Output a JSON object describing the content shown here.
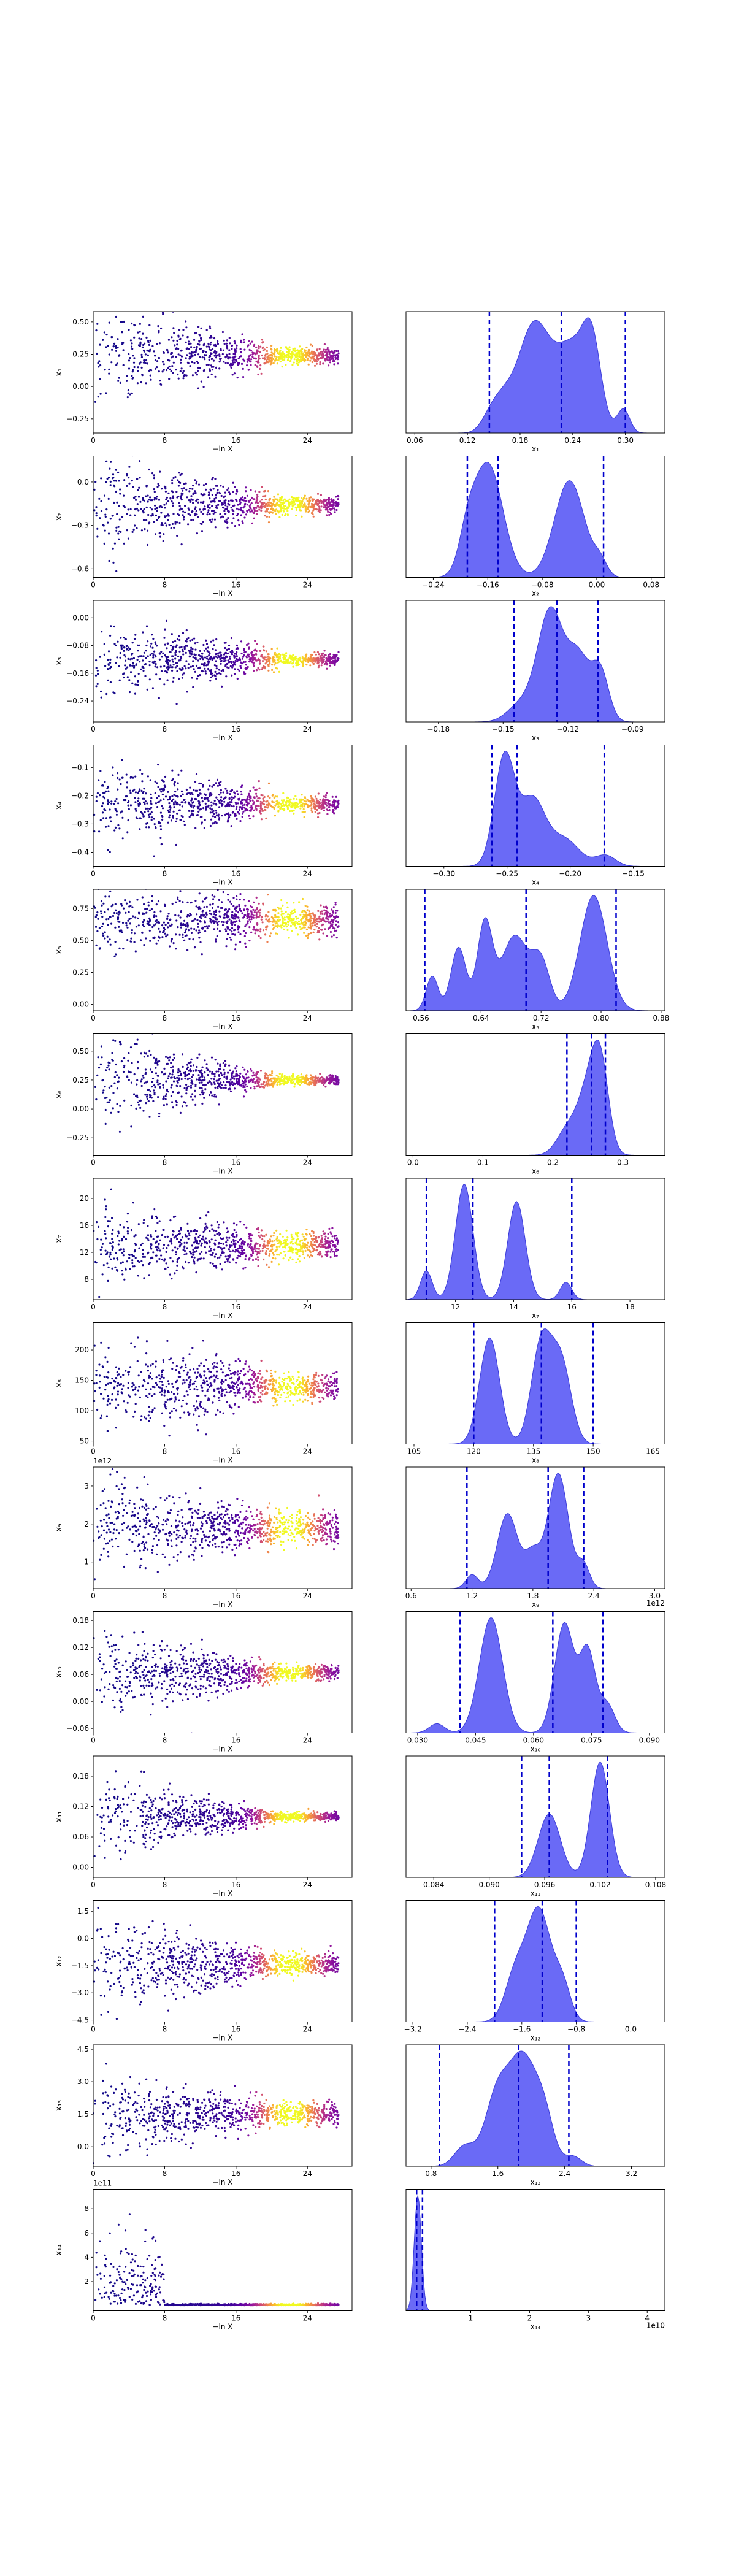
{
  "figure": {
    "x_axis_label": "−ln X",
    "colormap": [
      "#0d0887",
      "#5b02a3",
      "#9a179b",
      "#cb4678",
      "#eb7852",
      "#fbb32f",
      "#f0f921"
    ],
    "mean_line_color": "#0000cc",
    "fill_color": "#5a5af5"
  },
  "chart_data": [
    {
      "type": "scatter+kde",
      "param": "x₁",
      "trace": {
        "xlim": [
          0,
          29
        ],
        "xticks": [
          0,
          8,
          16,
          24
        ],
        "ylim": [
          -0.36,
          0.58
        ],
        "yticks": [
          -0.25,
          0,
          0.25,
          0.5
        ],
        "ytick_labels": [
          "−0.25",
          "0.00",
          "0.25",
          "0.50"
        ],
        "center": 0.24,
        "spread_early": 0.2,
        "spread_late": 0.03
      },
      "posterior": {
        "xlim": [
          0.05,
          0.345
        ],
        "xticks": [
          0.06,
          0.12,
          0.18,
          0.24,
          0.3
        ],
        "xtick_labels": [
          "0.06",
          "0.12",
          "0.18",
          "0.24",
          "0.30"
        ],
        "peaks": [
          [
            0.145,
            0.12,
            0.01
          ],
          [
            0.16,
            0.25,
            0.012
          ],
          [
            0.195,
            1.0,
            0.018
          ],
          [
            0.24,
            0.82,
            0.02
          ],
          [
            0.262,
            0.6,
            0.01
          ],
          [
            0.298,
            0.22,
            0.007
          ]
        ],
        "mean_lines": [
          0.145,
          0.227,
          0.3
        ],
        "label": "x₁"
      }
    },
    {
      "type": "scatter+kde",
      "param": "x₂",
      "trace": {
        "xlim": [
          0,
          29
        ],
        "xticks": [
          0,
          8,
          16,
          24
        ],
        "ylim": [
          -0.66,
          0.18
        ],
        "yticks": [
          -0.6,
          -0.3,
          0
        ],
        "ytick_labels": [
          "−0.6",
          "−0.3",
          "0.0"
        ],
        "center": -0.16,
        "spread_early": 0.18,
        "spread_late": 0.03
      },
      "posterior": {
        "xlim": [
          -0.28,
          0.1
        ],
        "xticks": [
          -0.24,
          -0.16,
          -0.08,
          0,
          0.08
        ],
        "xtick_labels": [
          "−0.24",
          "−0.16",
          "−0.08",
          "0.00",
          "0.08"
        ],
        "peaks": [
          [
            -0.19,
            0.25,
            0.012
          ],
          [
            -0.16,
            1.0,
            0.022
          ],
          [
            -0.04,
            0.85,
            0.022
          ],
          [
            0.005,
            0.12,
            0.01
          ]
        ],
        "mean_lines": [
          -0.19,
          -0.145,
          0.01
        ],
        "label": "x₂"
      }
    },
    {
      "type": "scatter+kde",
      "param": "x₃",
      "trace": {
        "xlim": [
          0,
          29
        ],
        "xticks": [
          0,
          8,
          16,
          24
        ],
        "ylim": [
          -0.3,
          0.05
        ],
        "yticks": [
          -0.24,
          -0.16,
          -0.08,
          0
        ],
        "ytick_labels": [
          "−0.24",
          "−0.16",
          "−0.08",
          "0.00"
        ],
        "center": -0.12,
        "spread_early": 0.06,
        "spread_late": 0.01
      },
      "posterior": {
        "xlim": [
          -0.195,
          -0.075
        ],
        "xticks": [
          -0.18,
          -0.15,
          -0.12,
          -0.09
        ],
        "xtick_labels": [
          "−0.18",
          "−0.15",
          "−0.12",
          "−0.09"
        ],
        "peaks": [
          [
            -0.142,
            0.15,
            0.006
          ],
          [
            -0.128,
            1.0,
            0.006
          ],
          [
            -0.115,
            0.55,
            0.005
          ],
          [
            -0.105,
            0.45,
            0.004
          ]
        ],
        "mean_lines": [
          -0.145,
          -0.125,
          -0.106
        ],
        "label": "x₃"
      }
    },
    {
      "type": "scatter+kde",
      "param": "x₄",
      "trace": {
        "xlim": [
          0,
          29
        ],
        "xticks": [
          0,
          8,
          16,
          24
        ],
        "ylim": [
          -0.45,
          -0.02
        ],
        "yticks": [
          -0.4,
          -0.3,
          -0.2,
          -0.1
        ],
        "ytick_labels": [
          "−0.4",
          "−0.3",
          "−0.2",
          "−0.1"
        ],
        "center": -0.23,
        "spread_early": 0.08,
        "spread_late": 0.015
      },
      "posterior": {
        "xlim": [
          -0.33,
          -0.125
        ],
        "xticks": [
          -0.3,
          -0.25,
          -0.2,
          -0.15
        ],
        "xtick_labels": [
          "−0.30",
          "−0.25",
          "−0.20",
          "−0.15"
        ],
        "peaks": [
          [
            -0.252,
            1.0,
            0.008
          ],
          [
            -0.23,
            0.6,
            0.01
          ],
          [
            -0.205,
            0.25,
            0.012
          ],
          [
            -0.172,
            0.1,
            0.008
          ]
        ],
        "mean_lines": [
          -0.262,
          -0.242,
          -0.173
        ],
        "label": "x₄"
      }
    },
    {
      "type": "scatter+kde",
      "param": "x₅",
      "trace": {
        "xlim": [
          0,
          29
        ],
        "xticks": [
          0,
          8,
          16,
          24
        ],
        "ylim": [
          -0.05,
          0.9
        ],
        "yticks": [
          0,
          0.25,
          0.5,
          0.75
        ],
        "ytick_labels": [
          "0.00",
          "0.25",
          "0.50",
          "0.75"
        ],
        "center": 0.66,
        "spread_early": 0.15,
        "spread_late": 0.06
      },
      "posterior": {
        "xlim": [
          0.54,
          0.885
        ],
        "xticks": [
          0.56,
          0.64,
          0.72,
          0.8,
          0.88
        ],
        "xtick_labels": [
          "0.56",
          "0.64",
          "0.72",
          "0.80",
          "0.88"
        ],
        "peaks": [
          [
            0.575,
            0.3,
            0.008
          ],
          [
            0.61,
            0.55,
            0.01
          ],
          [
            0.645,
            0.75,
            0.01
          ],
          [
            0.685,
            0.65,
            0.018
          ],
          [
            0.72,
            0.4,
            0.012
          ],
          [
            0.79,
            1.0,
            0.018
          ]
        ],
        "mean_lines": [
          0.565,
          0.7,
          0.82
        ],
        "label": "x₅"
      }
    },
    {
      "type": "scatter+kde",
      "param": "x₆",
      "trace": {
        "xlim": [
          0,
          29
        ],
        "xticks": [
          0,
          8,
          16,
          24
        ],
        "ylim": [
          -0.4,
          0.65
        ],
        "yticks": [
          -0.25,
          0,
          0.25,
          0.5
        ],
        "ytick_labels": [
          "−0.25",
          "0.00",
          "0.25",
          "0.50"
        ],
        "center": 0.25,
        "spread_early": 0.2,
        "spread_late": 0.02
      },
      "posterior": {
        "xlim": [
          -0.01,
          0.36
        ],
        "xticks": [
          0,
          0.1,
          0.2,
          0.3
        ],
        "xtick_labels": [
          "0.0",
          "0.1",
          "0.2",
          "0.3"
        ],
        "peaks": [
          [
            0.22,
            0.3,
            0.015
          ],
          [
            0.25,
            0.75,
            0.015
          ],
          [
            0.268,
            1.0,
            0.012
          ]
        ],
        "mean_lines": [
          0.22,
          0.255,
          0.275
        ],
        "label": "x₆"
      }
    },
    {
      "type": "scatter+kde",
      "param": "x₇",
      "trace": {
        "xlim": [
          0,
          29
        ],
        "xticks": [
          0,
          8,
          16,
          24
        ],
        "ylim": [
          5,
          23
        ],
        "yticks": [
          8,
          12,
          16,
          20
        ],
        "ytick_labels": [
          "8",
          "12",
          "16",
          "20"
        ],
        "center": 13,
        "spread_early": 3.0,
        "spread_late": 1.0
      },
      "posterior": {
        "xlim": [
          10.3,
          19.2
        ],
        "xticks": [
          12,
          14,
          16,
          18
        ],
        "xtick_labels": [
          "12",
          "14",
          "16",
          "18"
        ],
        "peaks": [
          [
            11,
            0.25,
            0.2
          ],
          [
            12.3,
            1.0,
            0.3
          ],
          [
            14.1,
            0.85,
            0.3
          ],
          [
            15.8,
            0.15,
            0.2
          ]
        ],
        "mean_lines": [
          11,
          12.6,
          16
        ],
        "label": "x₇"
      }
    },
    {
      "type": "scatter+kde",
      "param": "x₈",
      "trace": {
        "xlim": [
          0,
          29
        ],
        "xticks": [
          0,
          8,
          16,
          24
        ],
        "ylim": [
          45,
          245
        ],
        "yticks": [
          50,
          100,
          150,
          200
        ],
        "ytick_labels": [
          "50",
          "100",
          "150",
          "200"
        ],
        "center": 140,
        "spread_early": 40,
        "spread_late": 12
      },
      "posterior": {
        "xlim": [
          103,
          168
        ],
        "xticks": [
          105,
          120,
          135,
          150,
          165
        ],
        "xtick_labels": [
          "105",
          "120",
          "135",
          "150",
          "165"
        ],
        "peaks": [
          [
            124,
            1.0,
            2.5
          ],
          [
            137,
            0.95,
            2.5
          ],
          [
            142,
            0.75,
            2.5
          ]
        ],
        "mean_lines": [
          120,
          137,
          150
        ],
        "label": "x₈"
      }
    },
    {
      "type": "scatter+kde",
      "param": "x₉",
      "trace": {
        "xlim": [
          0,
          29
        ],
        "xticks": [
          0,
          8,
          16,
          24
        ],
        "ylim": [
          0.3,
          3.5
        ],
        "yticks": [
          1,
          2,
          3
        ],
        "ytick_labels": [
          "1",
          "2",
          "3"
        ],
        "center": 1.9,
        "spread_early": 0.6,
        "spread_late": 0.2,
        "scale_note": "1e12"
      },
      "posterior": {
        "xlim": [
          0.55,
          3.1
        ],
        "xticks": [
          0.6,
          1.2,
          1.8,
          2.4,
          3.0
        ],
        "xtick_labels": [
          "0.6",
          "1.2",
          "1.8",
          "2.4",
          "3.0"
        ],
        "peaks": [
          [
            1.2,
            0.12,
            0.06
          ],
          [
            1.55,
            0.65,
            0.1
          ],
          [
            1.8,
            0.3,
            0.08
          ],
          [
            2.05,
            1.0,
            0.1
          ],
          [
            2.3,
            0.2,
            0.06
          ]
        ],
        "mean_lines": [
          1.15,
          1.95,
          2.3
        ],
        "label": "x₉",
        "scale_note": "1e12"
      }
    },
    {
      "type": "scatter+kde",
      "param": "x₁₀",
      "trace": {
        "xlim": [
          0,
          29
        ],
        "xticks": [
          0,
          8,
          16,
          24
        ],
        "ylim": [
          -0.07,
          0.2
        ],
        "yticks": [
          -0.06,
          0,
          0.06,
          0.12,
          0.18
        ],
        "ytick_labels": [
          "−0.06",
          "0.00",
          "0.06",
          "0.12",
          "0.18"
        ],
        "center": 0.064,
        "spread_early": 0.05,
        "spread_late": 0.008
      },
      "posterior": {
        "xlim": [
          0.027,
          0.094
        ],
        "xticks": [
          0.03,
          0.045,
          0.06,
          0.075,
          0.09
        ],
        "xtick_labels": [
          "0.030",
          "0.045",
          "0.060",
          "0.075",
          "0.090"
        ],
        "peaks": [
          [
            0.035,
            0.08,
            0.002
          ],
          [
            0.049,
            1.0,
            0.003
          ],
          [
            0.068,
            0.95,
            0.0025
          ],
          [
            0.074,
            0.7,
            0.002
          ],
          [
            0.079,
            0.25,
            0.002
          ]
        ],
        "mean_lines": [
          0.041,
          0.065,
          0.078
        ],
        "label": "x₁₀"
      }
    },
    {
      "type": "scatter+kde",
      "param": "x₁₁",
      "trace": {
        "xlim": [
          0,
          29
        ],
        "xticks": [
          0,
          8,
          16,
          24
        ],
        "ylim": [
          -0.02,
          0.22
        ],
        "yticks": [
          0,
          0.06,
          0.12,
          0.18
        ],
        "ytick_labels": [
          "0.00",
          "0.06",
          "0.12",
          "0.18"
        ],
        "center": 0.1,
        "spread_early": 0.04,
        "spread_late": 0.004
      },
      "posterior": {
        "xlim": [
          0.081,
          0.109
        ],
        "xticks": [
          0.084,
          0.09,
          0.096,
          0.102,
          0.108
        ],
        "xtick_labels": [
          "0.084",
          "0.090",
          "0.096",
          "0.102",
          "0.108"
        ],
        "peaks": [
          [
            0.0965,
            0.55,
            0.0012
          ],
          [
            0.102,
            1.0,
            0.001
          ]
        ],
        "mean_lines": [
          0.0935,
          0.0965,
          0.1028
        ],
        "label": "x₁₁"
      }
    },
    {
      "type": "scatter+kde",
      "param": "x₁₂",
      "trace": {
        "xlim": [
          0,
          29
        ],
        "xticks": [
          0,
          8,
          16,
          24
        ],
        "ylim": [
          -4.6,
          2.1
        ],
        "yticks": [
          -4.5,
          -3,
          -1.5,
          0,
          1.5
        ],
        "ytick_labels": [
          "−4.5",
          "−3.0",
          "−1.5",
          "0.0",
          "1.5"
        ],
        "center": -1.4,
        "spread_early": 1.3,
        "spread_late": 0.3
      },
      "posterior": {
        "xlim": [
          -3.3,
          0.5
        ],
        "xticks": [
          -3.2,
          -2.4,
          -1.6,
          -0.8,
          0
        ],
        "xtick_labels": [
          "−3.2",
          "−2.4",
          "−1.6",
          "−0.8",
          "0.0"
        ],
        "peaks": [
          [
            -1.7,
            0.4,
            0.15
          ],
          [
            -1.35,
            1.0,
            0.18
          ],
          [
            -1.0,
            0.3,
            0.12
          ]
        ],
        "mean_lines": [
          -2.0,
          -1.3,
          -0.8
        ],
        "label": "x₁₂"
      }
    },
    {
      "type": "scatter+kde",
      "param": "x₁₃",
      "trace": {
        "xlim": [
          0,
          29
        ],
        "xticks": [
          0,
          8,
          16,
          24
        ],
        "ylim": [
          -0.9,
          4.7
        ],
        "yticks": [
          0,
          1.5,
          3,
          4.5
        ],
        "ytick_labels": [
          "0.0",
          "1.5",
          "3.0",
          "4.5"
        ],
        "center": 1.5,
        "spread_early": 0.9,
        "spread_late": 0.25
      },
      "posterior": {
        "xlim": [
          0.5,
          3.6
        ],
        "xticks": [
          0.8,
          1.6,
          2.4,
          3.2
        ],
        "xtick_labels": [
          "0.8",
          "1.6",
          "2.4",
          "3.2"
        ],
        "peaks": [
          [
            1.2,
            0.2,
            0.12
          ],
          [
            1.6,
            0.75,
            0.15
          ],
          [
            1.9,
            1.0,
            0.15
          ],
          [
            2.15,
            0.5,
            0.12
          ],
          [
            2.5,
            0.1,
            0.1
          ]
        ],
        "mean_lines": [
          0.9,
          1.85,
          2.45
        ],
        "label": "x₁₃"
      }
    },
    {
      "type": "scatter+kde",
      "param": "x₁₄",
      "trace": {
        "xlim": [
          0,
          29
        ],
        "xticks": [
          0,
          8,
          16,
          24
        ],
        "ylim": [
          -0.4,
          9.6
        ],
        "yticks": [
          2,
          4,
          6,
          8
        ],
        "ytick_labels": [
          "2",
          "4",
          "6",
          "8"
        ],
        "center": 0.05,
        "spread_early": 4.0,
        "spread_late": 0.02,
        "heavy_tail": true,
        "scale_note": "1e11"
      },
      "posterior": {
        "xlim": [
          -0.1,
          4.3
        ],
        "xticks": [
          1,
          2,
          3,
          4
        ],
        "xtick_labels": [
          "1",
          "2",
          "3",
          "4"
        ],
        "peaks": [
          [
            0.1,
            1.0,
            0.06
          ]
        ],
        "mean_lines": [
          0.08,
          0.18
        ],
        "label": "x₁₄",
        "scale_note": "1e10"
      }
    }
  ]
}
